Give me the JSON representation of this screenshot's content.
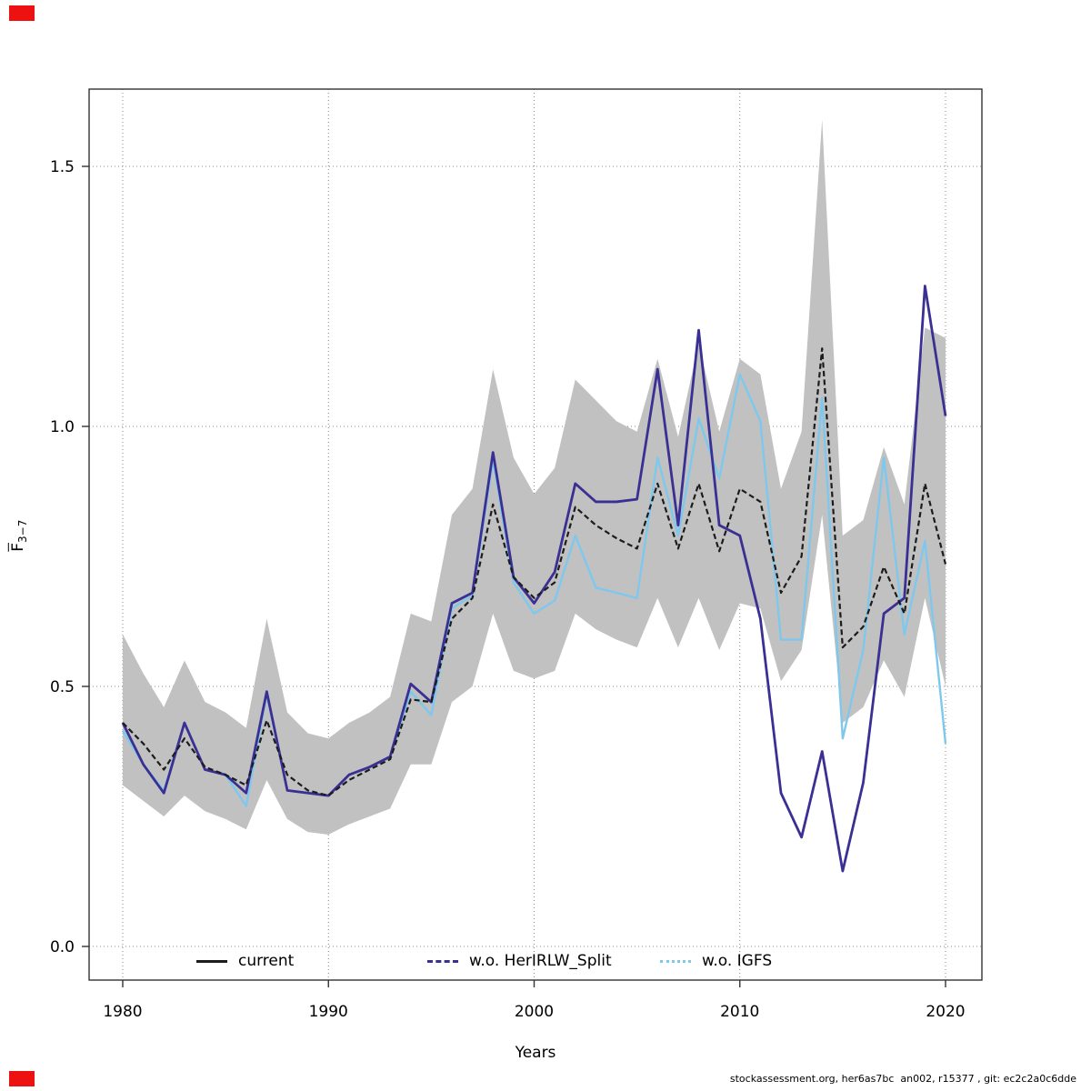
{
  "figure": {
    "xaxis": {
      "title": "Years",
      "ticks": [
        1980,
        1990,
        2000,
        2010,
        2020
      ]
    },
    "yaxis": {
      "title_main": "F",
      "title_sub": "3−7",
      "ticks": [
        "0.0",
        "0.5",
        "1.0",
        "1.5"
      ],
      "tick_values": [
        0.0,
        0.5,
        1.0,
        1.5
      ]
    }
  },
  "legend": {
    "items": [
      {
        "label": "current",
        "color": "#1c1c1c",
        "style": "solid"
      },
      {
        "label": "w.o. HerIRLW_Split",
        "color": "#3a2f92",
        "style": "dashed"
      },
      {
        "label": "w.o. IGFS",
        "color": "#7ec8ee",
        "style": "dotted"
      }
    ]
  },
  "footer": {
    "text": "stockassessment.org, her6as7bc  an002, r15377 , git: ec2c2a0c6dde"
  },
  "colors": {
    "band": "#c1c1c1",
    "current_line": "#1c1c1c",
    "split_line": "#3a2f92",
    "igfs_line": "#7ec8ee",
    "grid": "#8a8a8a",
    "frame": "#333333",
    "corner_marker": "#ee1111"
  },
  "chart_data": {
    "type": "line",
    "title": "",
    "xlabel": "Years",
    "ylabel": "F_3-7 (mean fishing mortality ages 3-7)",
    "xlim": [
      1978,
      2022
    ],
    "ylim": [
      -0.07,
      1.65
    ],
    "grid": "dotted",
    "legend_position": "bottom inside",
    "x": [
      1980,
      1981,
      1982,
      1983,
      1984,
      1985,
      1986,
      1987,
      1988,
      1989,
      1990,
      1991,
      1992,
      1993,
      1994,
      1995,
      1996,
      1997,
      1998,
      1999,
      2000,
      2001,
      2002,
      2003,
      2004,
      2005,
      2006,
      2007,
      2008,
      2009,
      2010,
      2011,
      2012,
      2013,
      2014,
      2015,
      2016,
      2017,
      2018,
      2019,
      2020
    ],
    "series": [
      {
        "name": "current",
        "values": [
          0.43,
          0.39,
          0.34,
          0.4,
          0.345,
          0.33,
          0.31,
          0.435,
          0.33,
          0.3,
          0.29,
          0.32,
          0.34,
          0.36,
          0.475,
          0.47,
          0.63,
          0.67,
          0.85,
          0.71,
          0.67,
          0.7,
          0.845,
          0.81,
          0.785,
          0.765,
          0.89,
          0.765,
          0.89,
          0.76,
          0.88,
          0.855,
          0.68,
          0.75,
          1.15,
          0.575,
          0.615,
          0.73,
          0.64,
          0.89,
          0.735
        ]
      },
      {
        "name": "w.o. HerIRLW_Split",
        "values": [
          0.43,
          0.35,
          0.295,
          0.43,
          0.34,
          0.33,
          0.295,
          0.49,
          0.3,
          0.295,
          0.29,
          0.33,
          0.345,
          0.365,
          0.505,
          0.47,
          0.66,
          0.68,
          0.95,
          0.71,
          0.66,
          0.72,
          0.89,
          0.855,
          0.855,
          0.86,
          1.11,
          0.81,
          1.185,
          0.81,
          0.79,
          0.63,
          0.295,
          0.21,
          0.375,
          0.145,
          0.315,
          0.64,
          0.67,
          1.27,
          1.02
        ]
      },
      {
        "name": "w.o. IGFS",
        "values": [
          0.415,
          0.35,
          0.3,
          0.43,
          0.34,
          0.33,
          0.27,
          0.485,
          0.3,
          0.295,
          0.29,
          0.33,
          0.345,
          0.365,
          0.49,
          0.445,
          0.65,
          0.675,
          0.935,
          0.7,
          0.64,
          0.665,
          0.79,
          0.69,
          0.68,
          0.67,
          0.94,
          0.79,
          1.015,
          0.9,
          1.1,
          1.01,
          0.59,
          0.59,
          1.055,
          0.4,
          0.57,
          0.94,
          0.6,
          0.78,
          0.39
        ]
      }
    ],
    "confidence_band": {
      "applies_to": "current",
      "lower": [
        0.31,
        0.28,
        0.25,
        0.29,
        0.26,
        0.245,
        0.225,
        0.32,
        0.245,
        0.22,
        0.215,
        0.235,
        0.25,
        0.265,
        0.35,
        0.35,
        0.47,
        0.5,
        0.64,
        0.53,
        0.515,
        0.53,
        0.64,
        0.61,
        0.59,
        0.575,
        0.67,
        0.575,
        0.67,
        0.57,
        0.66,
        0.65,
        0.51,
        0.57,
        0.83,
        0.43,
        0.46,
        0.55,
        0.48,
        0.67,
        0.5
      ],
      "upper": [
        0.6,
        0.525,
        0.46,
        0.55,
        0.47,
        0.45,
        0.42,
        0.63,
        0.45,
        0.41,
        0.4,
        0.43,
        0.45,
        0.48,
        0.64,
        0.625,
        0.83,
        0.88,
        1.11,
        0.94,
        0.87,
        0.92,
        1.09,
        1.05,
        1.01,
        0.99,
        1.13,
        0.98,
        1.16,
        0.99,
        1.13,
        1.1,
        0.88,
        0.99,
        1.59,
        0.79,
        0.82,
        0.96,
        0.85,
        1.19,
        1.17
      ]
    }
  }
}
